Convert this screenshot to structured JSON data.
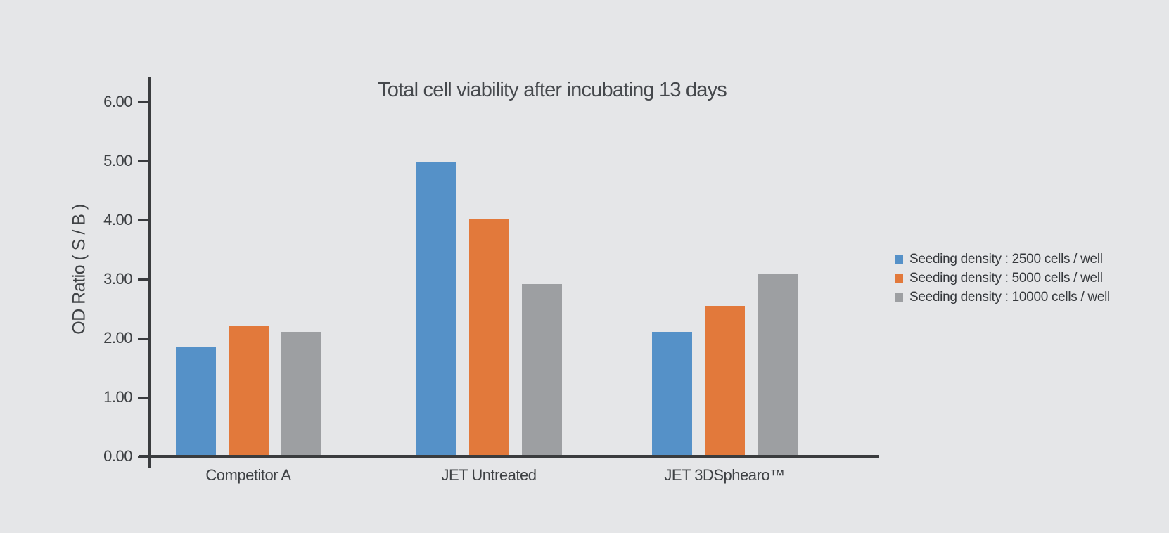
{
  "chart_data": {
    "type": "bar",
    "title": "Total cell viability after incubating 13 days",
    "xlabel": "",
    "ylabel": "OD Ratio ( S / B )",
    "ylim": [
      0,
      6
    ],
    "yticks": [
      "0.00",
      "1.00",
      "2.00",
      "3.00",
      "4.00",
      "5.00",
      "6.00"
    ],
    "grid": false,
    "legend_position": "right",
    "categories": [
      "Competitor A",
      "JET Untreated",
      "JET 3DSphearo™"
    ],
    "series": [
      {
        "name": "Seeding density : 2500 cells / well",
        "color": "#5591C8",
        "values": [
          1.83,
          4.95,
          2.08
        ]
      },
      {
        "name": "Seeding density : 5000 cells / well",
        "color": "#E2793B",
        "values": [
          2.18,
          3.99,
          2.52
        ]
      },
      {
        "name": "Seeding density : 10000 cells / well",
        "color": "#9D9FA2",
        "values": [
          2.08,
          2.89,
          3.06
        ]
      }
    ],
    "colors": {
      "background": "#E5E6E8",
      "axis": "#3A3C3E",
      "text": "#3E4144"
    }
  }
}
